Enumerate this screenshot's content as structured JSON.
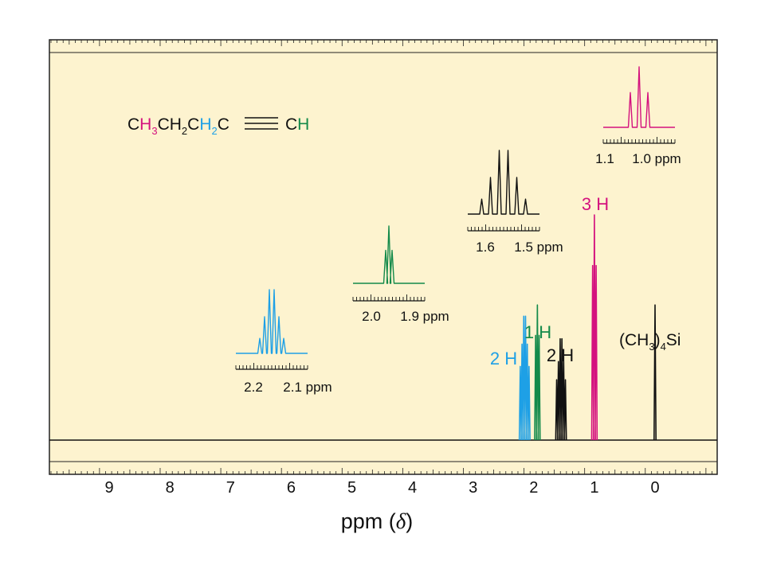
{
  "chart_data": {
    "type": "line",
    "xlabel_main": "ppm (",
    "xlabel_symbol": "δ",
    "xlabel_close": ")",
    "xlim": [
      10,
      -1
    ],
    "x_ticks": [
      "9",
      "8",
      "7",
      "6",
      "5",
      "4",
      "3",
      "2",
      "1",
      "0"
    ],
    "grid": false,
    "colors": {
      "panel_bg": "#fdf3cf",
      "frame": "#222222",
      "blue": "#1ea0e6",
      "green": "#138a4a",
      "black": "#111111",
      "magenta": "#d4127e"
    },
    "formula": {
      "c1": "C",
      "h1": "H",
      "sub1": "3",
      "c2": "CH",
      "sub2": "2",
      "c3": "C",
      "h3": "H",
      "sub3": "2",
      "c4": "C",
      "c5": "C",
      "h5": "H"
    },
    "tms_label": {
      "pre": "(CH",
      "sub": "3",
      "post": ")",
      "sub2": "4",
      "tail": "Si"
    },
    "series": [
      {
        "integration": "2 H",
        "color": "blue",
        "shift_ppm": 2.15,
        "multiplicity": 6,
        "height": 0.55
      },
      {
        "integration": "1 H",
        "color": "green",
        "shift_ppm": 1.94,
        "multiplicity": 3,
        "height": 0.6
      },
      {
        "integration": "2 H",
        "color": "black",
        "shift_ppm": 1.55,
        "multiplicity": 6,
        "height": 0.45
      },
      {
        "integration": "3 H",
        "color": "magenta",
        "shift_ppm": 1.0,
        "multiplicity": 3,
        "height": 1.0
      },
      {
        "integration": "",
        "color": "black",
        "shift_ppm": 0.0,
        "multiplicity": 1,
        "height": 0.6
      }
    ],
    "insets": [
      {
        "color": "blue",
        "peaks": 6,
        "labels": [
          "2.2",
          "2.1 ppm"
        ]
      },
      {
        "color": "green",
        "peaks": 3,
        "labels": [
          "2.0",
          "1.9 ppm"
        ]
      },
      {
        "color": "black",
        "peaks": 6,
        "labels": [
          "1.6",
          "1.5 ppm"
        ]
      },
      {
        "color": "magenta",
        "peaks": 3,
        "labels": [
          "1.1",
          "1.0 ppm"
        ]
      }
    ]
  }
}
